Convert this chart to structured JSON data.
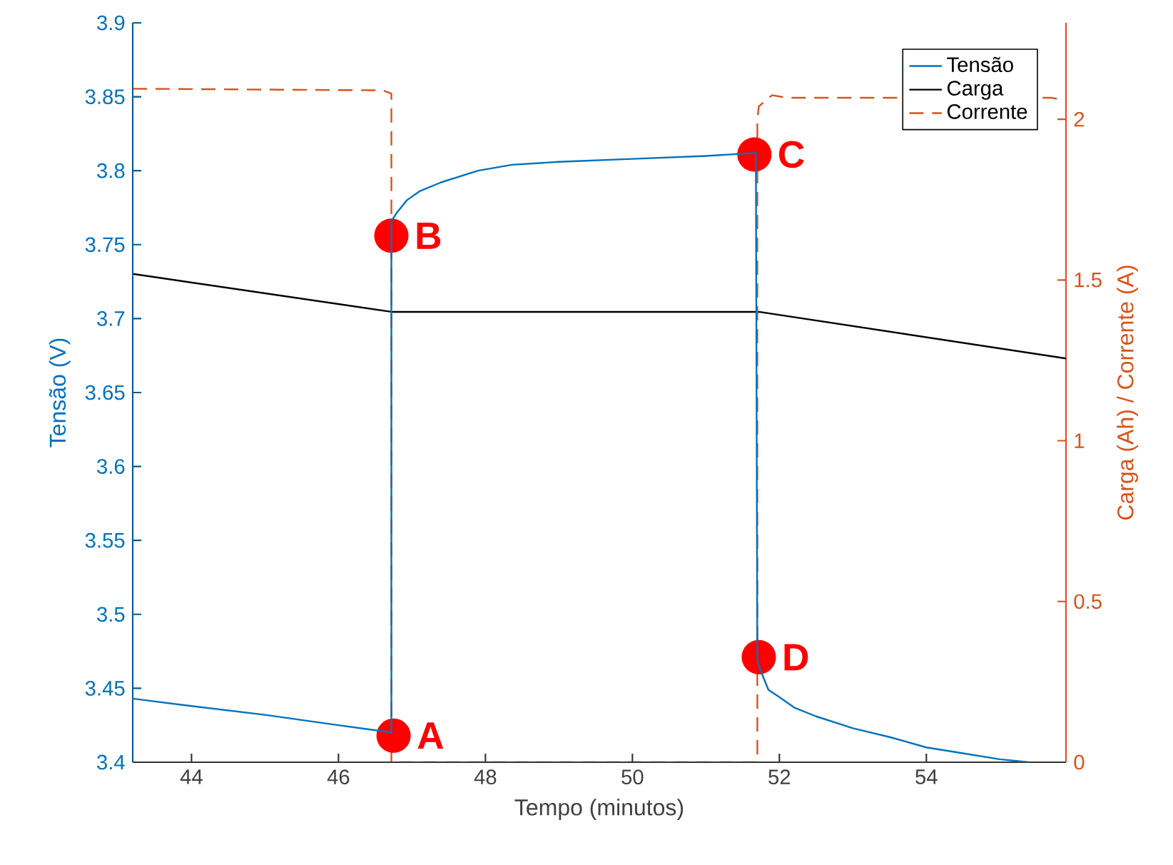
{
  "chart_data": {
    "type": "line",
    "xlabel": "Tempo (minutos)",
    "ylabel": "Tensão (V)",
    "y2label": "Carga (Ah) / Corrente (A)",
    "xlim": [
      43.2,
      55.9
    ],
    "xticks": [
      44,
      46,
      48,
      50,
      52,
      54
    ],
    "ylim": [
      3.4,
      3.9
    ],
    "yticks": [
      3.4,
      3.45,
      3.5,
      3.55,
      3.6,
      3.65,
      3.7,
      3.75,
      3.8,
      3.85,
      3.9
    ],
    "y2lim": [
      0,
      2.3
    ],
    "y2ticks": [
      0,
      0.5,
      1,
      1.5,
      2
    ],
    "legend": "top right",
    "series": [
      {
        "name": "Tensão",
        "color": "#0072bd",
        "line_style": "solid",
        "x": [
          43.2,
          44,
          45,
          46,
          46.6,
          46.72,
          46.72,
          46.8,
          46.93,
          47.1,
          47.39,
          47.9,
          48.36,
          49,
          50,
          51,
          51.68,
          51.7,
          51.72,
          51.85,
          52,
          52.2,
          52.5,
          53,
          53.5,
          54,
          54.5,
          55,
          55.4
        ],
        "values": [
          3.443,
          3.438,
          3.432,
          3.425,
          3.421,
          3.42,
          3.766,
          3.772,
          3.78,
          3.786,
          3.792,
          3.8,
          3.804,
          3.806,
          3.808,
          3.81,
          3.812,
          3.47,
          3.465,
          3.449,
          3.444,
          3.437,
          3.431,
          3.423,
          3.417,
          3.41,
          3.406,
          3.402,
          3.4
        ]
      },
      {
        "name": "Carga",
        "color": "#000000",
        "line_style": "solid",
        "axis": "y2",
        "x": [
          43.2,
          46.72,
          51.72,
          55.9
        ],
        "values": [
          1.519,
          1.401,
          1.401,
          1.256
        ]
      },
      {
        "name": "Corrente",
        "color": "#d95319",
        "line_style": "dashed",
        "axis": "y2",
        "x": [
          43.2,
          46.6,
          46.72,
          46.72,
          51.7,
          51.7,
          51.72,
          51.9,
          52.1,
          55.7,
          55.85
        ],
        "values": [
          2.095,
          2.09,
          2.08,
          0,
          0,
          2.0,
          2.04,
          2.075,
          2.067,
          2.067,
          2.06
        ]
      }
    ],
    "annotations": [
      {
        "text": "A",
        "x": 46.75,
        "y": 3.418
      },
      {
        "text": "B",
        "x": 46.72,
        "y": 3.756
      },
      {
        "text": "C",
        "x": 51.66,
        "y": 3.811
      },
      {
        "text": "D",
        "x": 51.72,
        "y": 3.471
      }
    ]
  }
}
